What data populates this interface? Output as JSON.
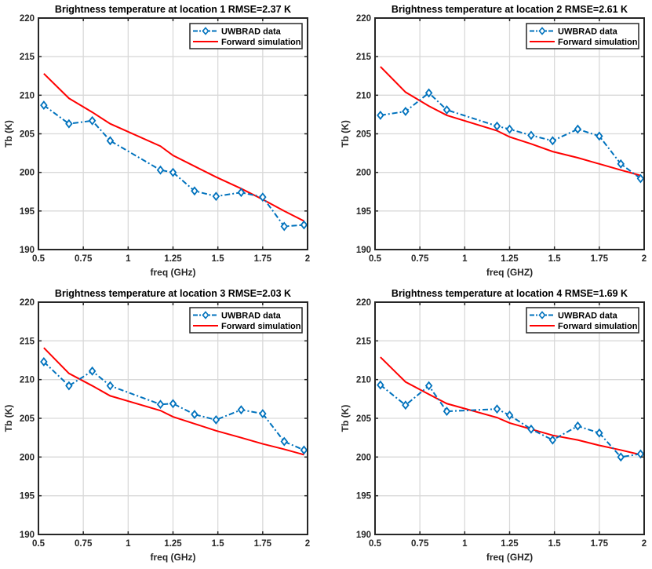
{
  "figure": {
    "background": "#ffffff"
  },
  "colors": {
    "measured": "#0072BD",
    "simulated": "#FF0000",
    "grid": "#d9d9d9",
    "axis": "#262626"
  },
  "chart_data": [
    {
      "type": "line",
      "title": "Brightness temperature at location 1 RMSE=2.37 K",
      "xlabel": "freq (GHz)",
      "ylabel": "Tb (K)",
      "xlim": [
        0.5,
        2
      ],
      "ylim": [
        190,
        220
      ],
      "xticks": [
        0.5,
        0.75,
        1,
        1.25,
        1.5,
        1.75,
        2
      ],
      "xticklabels": [
        "0.5",
        "0.75",
        "1",
        "1.25",
        "1.5",
        "1.75",
        "2"
      ],
      "yticks": [
        190,
        195,
        200,
        205,
        210,
        215,
        220
      ],
      "yticklabels": [
        "190",
        "195",
        "200",
        "205",
        "210",
        "215",
        "220"
      ],
      "grid": true,
      "legend_position": "top-right",
      "x": [
        0.53,
        0.67,
        0.8,
        0.9,
        1.18,
        1.25,
        1.37,
        1.49,
        1.63,
        1.75,
        1.87,
        1.98
      ],
      "series": [
        {
          "name": "UWBRAD data",
          "style": "dash-dot with diamond markers",
          "values": [
            208.7,
            206.3,
            206.7,
            204.1,
            200.3,
            200.0,
            197.6,
            196.9,
            197.4,
            196.8,
            193.0,
            193.2
          ]
        },
        {
          "name": "Forward simulation",
          "style": "solid",
          "values": [
            212.8,
            209.6,
            207.8,
            206.3,
            203.4,
            202.2,
            200.8,
            199.4,
            197.9,
            196.5,
            195.0,
            193.7
          ]
        }
      ]
    },
    {
      "type": "line",
      "title": "Brightness temperature at location 2 RMSE=2.61 K",
      "xlabel": "freq (GHZ)",
      "ylabel": "Tb (K)",
      "xlim": [
        0.5,
        2
      ],
      "ylim": [
        190,
        220
      ],
      "xticks": [
        0.5,
        0.75,
        1,
        1.25,
        1.5,
        1.75,
        2
      ],
      "xticklabels": [
        "0.5",
        "0.75",
        "1",
        "1.25",
        "1.5",
        "1.75",
        "2"
      ],
      "yticks": [
        190,
        195,
        200,
        205,
        210,
        215,
        220
      ],
      "yticklabels": [
        "190",
        "195",
        "200",
        "205",
        "210",
        "215",
        "220"
      ],
      "grid": true,
      "legend_position": "top-right",
      "x": [
        0.53,
        0.67,
        0.8,
        0.9,
        1.18,
        1.25,
        1.37,
        1.49,
        1.63,
        1.75,
        1.87,
        1.98
      ],
      "series": [
        {
          "name": "UWBRAD data",
          "style": "dash-dot with diamond markers",
          "values": [
            207.4,
            207.9,
            210.3,
            208.1,
            206.0,
            205.6,
            204.8,
            204.1,
            205.6,
            204.7,
            201.1,
            199.2
          ]
        },
        {
          "name": "Forward simulation",
          "style": "solid",
          "values": [
            213.7,
            210.4,
            208.6,
            207.4,
            205.4,
            204.6,
            203.7,
            202.7,
            201.9,
            201.1,
            200.3,
            199.6
          ]
        }
      ]
    },
    {
      "type": "line",
      "title": "Brightness temperature at location 3 RMSE=2.03 K",
      "xlabel": "freq (GHz)",
      "ylabel": "Tb (K)",
      "xlim": [
        0.5,
        2
      ],
      "ylim": [
        190,
        220
      ],
      "xticks": [
        0.5,
        0.75,
        1,
        1.25,
        1.5,
        1.75,
        2
      ],
      "xticklabels": [
        "0.5",
        "0.75",
        "1",
        "1.25",
        "1.5",
        "1.75",
        "2"
      ],
      "yticks": [
        190,
        195,
        200,
        205,
        210,
        215,
        220
      ],
      "yticklabels": [
        "190",
        "195",
        "200",
        "205",
        "210",
        "215",
        "220"
      ],
      "grid": true,
      "legend_position": "top-right",
      "x": [
        0.53,
        0.67,
        0.8,
        0.9,
        1.18,
        1.25,
        1.37,
        1.49,
        1.63,
        1.75,
        1.87,
        1.98
      ],
      "series": [
        {
          "name": "UWBRAD data",
          "style": "dash-dot with diamond markers",
          "values": [
            212.3,
            209.2,
            211.1,
            209.2,
            206.8,
            206.9,
            205.5,
            204.8,
            206.1,
            205.6,
            202.0,
            200.9
          ]
        },
        {
          "name": "Forward simulation",
          "style": "solid",
          "values": [
            214.1,
            210.8,
            209.2,
            207.9,
            206.0,
            205.2,
            204.3,
            203.4,
            202.5,
            201.7,
            201.0,
            200.3
          ]
        }
      ]
    },
    {
      "type": "line",
      "title": "Brightness temperature at location 4 RMSE=1.69 K",
      "xlabel": "freq (GHZ)",
      "ylabel": "Tb (K)",
      "xlim": [
        0.5,
        2
      ],
      "ylim": [
        190,
        220
      ],
      "xticks": [
        0.5,
        0.75,
        1,
        1.25,
        1.5,
        1.75,
        2
      ],
      "xticklabels": [
        "0.5",
        "0.75",
        "1",
        "1.25",
        "1.5",
        "1.75",
        "2"
      ],
      "yticks": [
        190,
        195,
        200,
        205,
        210,
        215,
        220
      ],
      "yticklabels": [
        "190",
        "195",
        "200",
        "205",
        "210",
        "215",
        "220"
      ],
      "grid": true,
      "legend_position": "top-right",
      "x": [
        0.53,
        0.67,
        0.8,
        0.9,
        1.18,
        1.25,
        1.37,
        1.49,
        1.63,
        1.75,
        1.87,
        1.98
      ],
      "series": [
        {
          "name": "UWBRAD data",
          "style": "dash-dot with diamond markers",
          "values": [
            209.3,
            206.7,
            209.2,
            205.9,
            206.2,
            205.4,
            203.6,
            202.2,
            204.0,
            203.1,
            200.0,
            200.4
          ]
        },
        {
          "name": "Forward simulation",
          "style": "solid",
          "values": [
            212.9,
            209.7,
            208.1,
            206.9,
            205.1,
            204.4,
            203.6,
            202.8,
            202.2,
            201.5,
            200.9,
            200.3
          ]
        }
      ]
    }
  ]
}
